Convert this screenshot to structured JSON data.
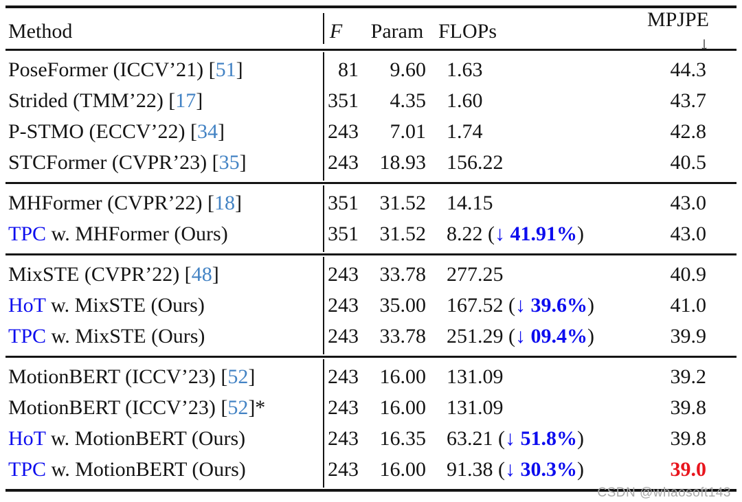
{
  "colors": {
    "text": "#141414",
    "rule": "#141414",
    "cite": "#4383c4",
    "ours": "#0d0dee",
    "best": "#e8151d",
    "watermark": "#a9a9a9"
  },
  "header": {
    "method": "Method",
    "frames": "F",
    "param": "Param",
    "flops": "FLOPs",
    "mpjpe": "MPJPE",
    "mpjpe_arrow": "↓"
  },
  "watermark": "CSDN @whaosoft143",
  "table": {
    "sections": [
      {
        "rows": [
          {
            "method": [
              {
                "t": "PoseFormer (ICCV’21) [",
                "c": "plain"
              },
              {
                "t": "51",
                "c": "cite"
              },
              {
                "t": "]",
                "c": "plain"
              }
            ],
            "f": "81",
            "param": "9.60",
            "flops": [
              {
                "t": "1.63",
                "c": "plain"
              }
            ],
            "mpjpe": {
              "v": "44.3",
              "best": false
            }
          },
          {
            "method": [
              {
                "t": "Strided (TMM’22) [",
                "c": "plain"
              },
              {
                "t": "17",
                "c": "cite"
              },
              {
                "t": "]",
                "c": "plain"
              }
            ],
            "f": "351",
            "param": "4.35",
            "flops": [
              {
                "t": "1.60",
                "c": "plain"
              }
            ],
            "mpjpe": {
              "v": "43.7",
              "best": false
            }
          },
          {
            "method": [
              {
                "t": "P-STMO (ECCV’22) [",
                "c": "plain"
              },
              {
                "t": "34",
                "c": "cite"
              },
              {
                "t": "]",
                "c": "plain"
              }
            ],
            "f": "243",
            "param": "7.01",
            "flops": [
              {
                "t": "1.74",
                "c": "plain"
              }
            ],
            "mpjpe": {
              "v": "42.8",
              "best": false
            }
          },
          {
            "method": [
              {
                "t": "STCFormer (CVPR’23) [",
                "c": "plain"
              },
              {
                "t": "35",
                "c": "cite"
              },
              {
                "t": "]",
                "c": "plain"
              }
            ],
            "f": "243",
            "param": "18.93",
            "flops": [
              {
                "t": "156.22",
                "c": "plain"
              }
            ],
            "mpjpe": {
              "v": "40.5",
              "best": false
            }
          }
        ]
      },
      {
        "rows": [
          {
            "method": [
              {
                "t": "MHFormer (CVPR’22) [",
                "c": "plain"
              },
              {
                "t": "18",
                "c": "cite"
              },
              {
                "t": "]",
                "c": "plain"
              }
            ],
            "f": "351",
            "param": "31.52",
            "flops": [
              {
                "t": "14.15",
                "c": "plain"
              }
            ],
            "mpjpe": {
              "v": "43.0",
              "best": false
            }
          },
          {
            "method": [
              {
                "t": "TPC",
                "c": "ours"
              },
              {
                "t": " w. MHFormer (Ours)",
                "c": "plain"
              }
            ],
            "f": "351",
            "param": "31.52",
            "flops": [
              {
                "t": "8.22 (",
                "c": "plain"
              },
              {
                "t": "↓ ",
                "c": "arrow"
              },
              {
                "t": "41.91%",
                "c": "pct"
              },
              {
                "t": ")",
                "c": "plain"
              }
            ],
            "mpjpe": {
              "v": "43.0",
              "best": false
            }
          }
        ]
      },
      {
        "rows": [
          {
            "method": [
              {
                "t": "MixSTE (CVPR’22) [",
                "c": "plain"
              },
              {
                "t": "48",
                "c": "cite"
              },
              {
                "t": "]",
                "c": "plain"
              }
            ],
            "f": "243",
            "param": "33.78",
            "flops": [
              {
                "t": "277.25",
                "c": "plain"
              }
            ],
            "mpjpe": {
              "v": "40.9",
              "best": false
            }
          },
          {
            "method": [
              {
                "t": "HoT",
                "c": "ours"
              },
              {
                "t": " w. MixSTE (Ours)",
                "c": "plain"
              }
            ],
            "f": "243",
            "param": "35.00",
            "flops": [
              {
                "t": "167.52 (",
                "c": "plain"
              },
              {
                "t": "↓ ",
                "c": "arrow"
              },
              {
                "t": "39.6%",
                "c": "pct"
              },
              {
                "t": ")",
                "c": "plain"
              }
            ],
            "mpjpe": {
              "v": "41.0",
              "best": false
            }
          },
          {
            "method": [
              {
                "t": "TPC",
                "c": "ours"
              },
              {
                "t": " w. MixSTE (Ours)",
                "c": "plain"
              }
            ],
            "f": "243",
            "param": "33.78",
            "flops": [
              {
                "t": "251.29 (",
                "c": "plain"
              },
              {
                "t": "↓ ",
                "c": "arrow"
              },
              {
                "t": "09.4%",
                "c": "pct"
              },
              {
                "t": ")",
                "c": "plain"
              }
            ],
            "mpjpe": {
              "v": "39.9",
              "best": false
            }
          }
        ]
      },
      {
        "rows": [
          {
            "method": [
              {
                "t": "MotionBERT (ICCV’23) [",
                "c": "plain"
              },
              {
                "t": "52",
                "c": "cite"
              },
              {
                "t": "]",
                "c": "plain"
              }
            ],
            "f": "243",
            "param": "16.00",
            "flops": [
              {
                "t": "131.09",
                "c": "plain"
              }
            ],
            "mpjpe": {
              "v": "39.2",
              "best": false
            }
          },
          {
            "method": [
              {
                "t": "MotionBERT (ICCV’23) [",
                "c": "plain"
              },
              {
                "t": "52",
                "c": "cite"
              },
              {
                "t": "]*",
                "c": "plain"
              }
            ],
            "f": "243",
            "param": "16.00",
            "flops": [
              {
                "t": "131.09",
                "c": "plain"
              }
            ],
            "mpjpe": {
              "v": "39.8",
              "best": false
            }
          },
          {
            "method": [
              {
                "t": "HoT",
                "c": "ours"
              },
              {
                "t": " w. MotionBERT (Ours)",
                "c": "plain"
              }
            ],
            "f": "243",
            "param": "16.35",
            "flops": [
              {
                "t": "63.21 (",
                "c": "plain"
              },
              {
                "t": "↓ ",
                "c": "arrow"
              },
              {
                "t": "51.8%",
                "c": "pct"
              },
              {
                "t": ")",
                "c": "plain"
              }
            ],
            "mpjpe": {
              "v": "39.8",
              "best": false
            }
          },
          {
            "method": [
              {
                "t": "TPC",
                "c": "ours"
              },
              {
                "t": " w. MotionBERT (Ours)",
                "c": "plain"
              }
            ],
            "f": "243",
            "param": "16.00",
            "flops": [
              {
                "t": "91.38 (",
                "c": "plain"
              },
              {
                "t": "↓ ",
                "c": "arrow"
              },
              {
                "t": "30.3%",
                "c": "pct"
              },
              {
                "t": ")",
                "c": "plain"
              }
            ],
            "mpjpe": {
              "v": "39.0",
              "best": true
            }
          }
        ]
      }
    ]
  }
}
